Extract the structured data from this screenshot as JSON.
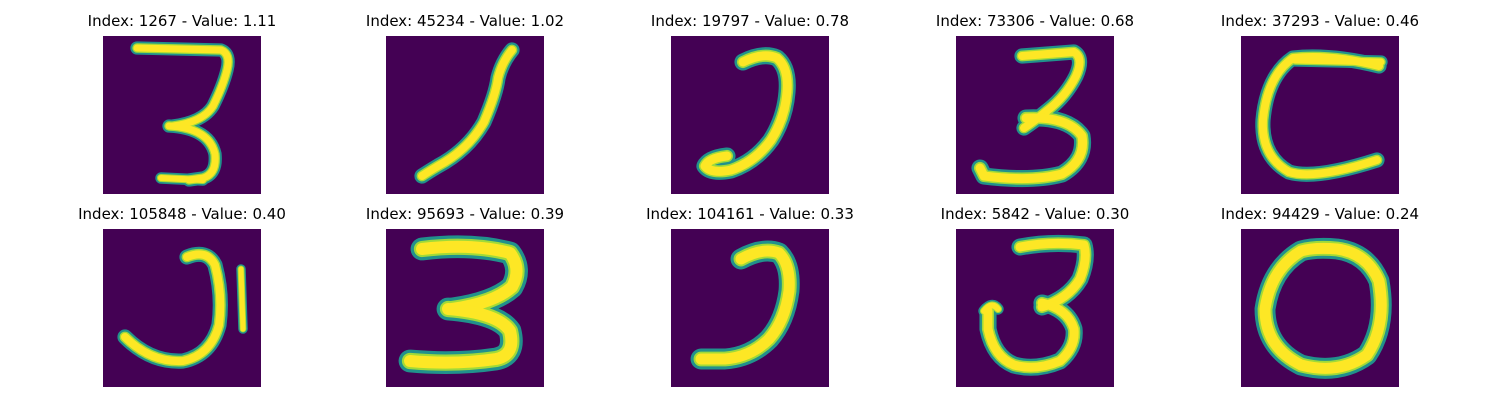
{
  "colors": {
    "background": "#440154",
    "stroke_core": "#fde725",
    "stroke_mid": "#a0da39",
    "stroke_edge": "#21918c"
  },
  "panels": [
    {
      "title": "Index: 1267 - Value: 1.11",
      "glyph": "three-flat-top"
    },
    {
      "title": "Index: 45234 - Value: 1.02",
      "glyph": "one-curved"
    },
    {
      "title": "Index: 19797 - Value: 0.78",
      "glyph": "hook"
    },
    {
      "title": "Index: 73306 - Value: 0.68",
      "glyph": "three"
    },
    {
      "title": "Index: 37293 - Value: 0.46",
      "glyph": "c-shape"
    },
    {
      "title": "Index: 105848 - Value: 0.40",
      "glyph": "j-shape"
    },
    {
      "title": "Index: 95693 - Value: 0.39",
      "glyph": "three-bold"
    },
    {
      "title": "Index: 104161 - Value: 0.33",
      "glyph": "hook-bold"
    },
    {
      "title": "Index: 5842 - Value: 0.30",
      "glyph": "three-loop"
    },
    {
      "title": "Index: 94429 - Value: 0.24",
      "glyph": "zero"
    }
  ]
}
